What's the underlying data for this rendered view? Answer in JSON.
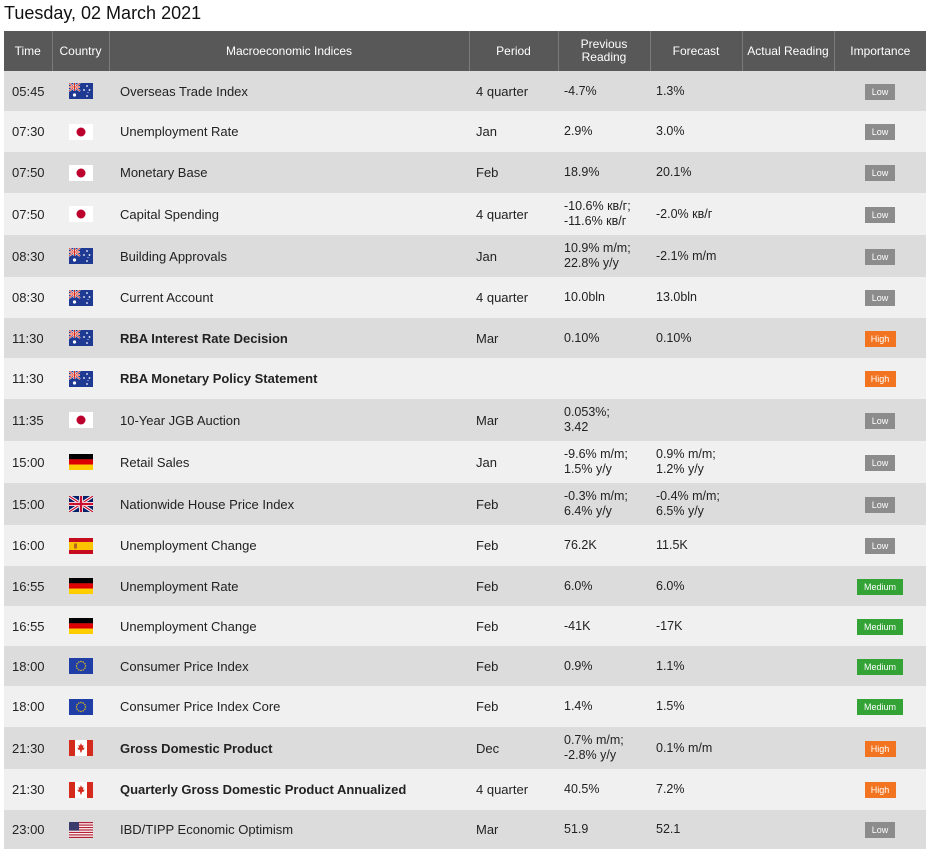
{
  "page_title": "Tuesday, 02 March 2021",
  "columns": {
    "time": "Time",
    "country": "Country",
    "indices": "Macroeconomic Indices",
    "period": "Period",
    "previous": "Previous Reading",
    "forecast": "Forecast",
    "actual": "Actual Reading",
    "importance": "Importance"
  },
  "rows": [
    {
      "time": "05:45",
      "flag": "au-flag-icon",
      "name": "Overseas Trade Index",
      "bold": false,
      "period": "4 quarter",
      "previous": [
        "-4.7%"
      ],
      "forecast": [
        "1.3%"
      ],
      "actual": "",
      "importance": "Low"
    },
    {
      "time": "07:30",
      "flag": "jp-flag-icon",
      "name": "Unemployment Rate",
      "bold": false,
      "period": "Jan",
      "previous": [
        "2.9%"
      ],
      "forecast": [
        "3.0%"
      ],
      "actual": "",
      "importance": "Low"
    },
    {
      "time": "07:50",
      "flag": "jp-flag-icon",
      "name": "Monetary Base",
      "bold": false,
      "period": "Feb",
      "previous": [
        "18.9%"
      ],
      "forecast": [
        "20.1%"
      ],
      "actual": "",
      "importance": "Low"
    },
    {
      "time": "07:50",
      "flag": "jp-flag-icon",
      "name": "Capital Spending",
      "bold": false,
      "period": "4 quarter",
      "previous": [
        "-10.6% кв/г;",
        "-11.6% кв/г"
      ],
      "forecast": [
        "-2.0% кв/г"
      ],
      "actual": "",
      "importance": "Low"
    },
    {
      "time": "08:30",
      "flag": "au-flag-icon",
      "name": "Building Approvals",
      "bold": false,
      "period": "Jan",
      "previous": [
        "10.9% m/m;",
        "22.8% y/y"
      ],
      "forecast": [
        "-2.1% m/m"
      ],
      "actual": "",
      "importance": "Low"
    },
    {
      "time": "08:30",
      "flag": "au-flag-icon",
      "name": "Current Account",
      "bold": false,
      "period": "4 quarter",
      "previous": [
        "10.0bln"
      ],
      "forecast": [
        "13.0bln"
      ],
      "actual": "",
      "importance": "Low"
    },
    {
      "time": "11:30",
      "flag": "au-flag-icon",
      "name": "RBA Interest Rate Decision",
      "bold": true,
      "period": "Mar",
      "previous": [
        "0.10%"
      ],
      "forecast": [
        "0.10%"
      ],
      "actual": "",
      "importance": "High"
    },
    {
      "time": "11:30",
      "flag": "au-flag-icon",
      "name": "RBA Monetary Policy Statement",
      "bold": true,
      "period": "",
      "previous": [],
      "forecast": [],
      "actual": "",
      "importance": "High"
    },
    {
      "time": "11:35",
      "flag": "jp-flag-icon",
      "name": "10-Year JGB Auction",
      "bold": false,
      "period": "Mar",
      "previous": [
        "0.053%;",
        "3.42"
      ],
      "forecast": [],
      "actual": "",
      "importance": "Low"
    },
    {
      "time": "15:00",
      "flag": "de-flag-icon",
      "name": "Retail Sales",
      "bold": false,
      "period": "Jan",
      "previous": [
        "-9.6% m/m;",
        "1.5% y/y"
      ],
      "forecast": [
        "0.9% m/m;",
        "1.2% y/y"
      ],
      "actual": "",
      "importance": "Low"
    },
    {
      "time": "15:00",
      "flag": "gb-flag-icon",
      "name": "Nationwide House Price Index",
      "bold": false,
      "period": "Feb",
      "previous": [
        "-0.3% m/m;",
        "6.4% y/y"
      ],
      "forecast": [
        "-0.4% m/m;",
        "6.5% y/y"
      ],
      "actual": "",
      "importance": "Low"
    },
    {
      "time": "16:00",
      "flag": "es-flag-icon",
      "name": "Unemployment Change",
      "bold": false,
      "period": "Feb",
      "previous": [
        "76.2K"
      ],
      "forecast": [
        "11.5K"
      ],
      "actual": "",
      "importance": "Low"
    },
    {
      "time": "16:55",
      "flag": "de-flag-icon",
      "name": "Unemployment Rate",
      "bold": false,
      "period": "Feb",
      "previous": [
        "6.0%"
      ],
      "forecast": [
        "6.0%"
      ],
      "actual": "",
      "importance": "Medium"
    },
    {
      "time": "16:55",
      "flag": "de-flag-icon",
      "name": "Unemployment Change",
      "bold": false,
      "period": "Feb",
      "previous": [
        "-41K"
      ],
      "forecast": [
        "-17K"
      ],
      "actual": "",
      "importance": "Medium"
    },
    {
      "time": "18:00",
      "flag": "eu-flag-icon",
      "name": "Consumer Price Index",
      "bold": false,
      "period": "Feb",
      "previous": [
        "0.9%"
      ],
      "forecast": [
        "1.1%"
      ],
      "actual": "",
      "importance": "Medium"
    },
    {
      "time": "18:00",
      "flag": "eu-flag-icon",
      "name": "Consumer Price Index Core",
      "bold": false,
      "period": "Feb",
      "previous": [
        "1.4%"
      ],
      "forecast": [
        "1.5%"
      ],
      "actual": "",
      "importance": "Medium"
    },
    {
      "time": "21:30",
      "flag": "ca-flag-icon",
      "name": "Gross Domestic Product",
      "bold": true,
      "period": "Dec",
      "previous": [
        "0.7% m/m;",
        "-2.8% y/y"
      ],
      "forecast": [
        "0.1% m/m"
      ],
      "actual": "",
      "importance": "High"
    },
    {
      "time": "21:30",
      "flag": "ca-flag-icon",
      "name": "Quarterly Gross Domestic Product Annualized",
      "bold": true,
      "period": "4 quarter",
      "previous": [
        "40.5%"
      ],
      "forecast": [
        "7.2%"
      ],
      "actual": "",
      "importance": "High"
    },
    {
      "time": "23:00",
      "flag": "us-flag-icon",
      "name": "IBD/TIPP Economic Optimism",
      "bold": false,
      "period": "Mar",
      "previous": [
        "51.9"
      ],
      "forecast": [
        "52.1"
      ],
      "actual": "",
      "importance": "Low"
    }
  ]
}
